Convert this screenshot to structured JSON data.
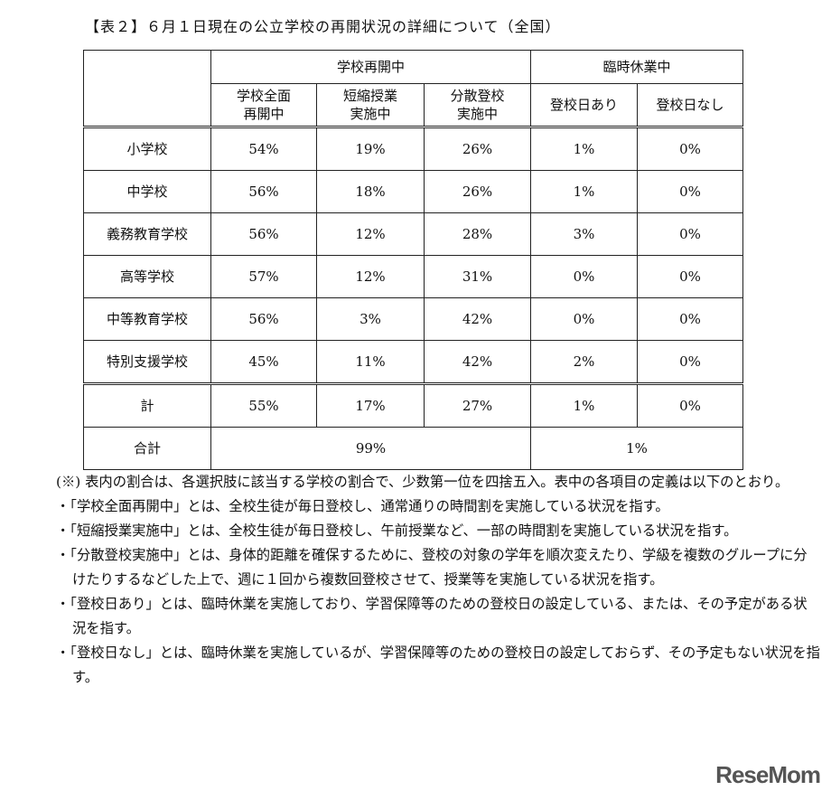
{
  "title": "【表２】６月１日現在の公立学校の再開状況の詳細について（全国）",
  "table": {
    "group_headers": [
      "学校再開中",
      "臨時休業中"
    ],
    "sub_headers": [
      "学校全面\n再開中",
      "短縮授業\n実施中",
      "分散登校\n実施中",
      "登校日あり",
      "登校日なし"
    ],
    "rows": [
      {
        "label": "小学校",
        "values": [
          "54%",
          "19%",
          "26%",
          "1%",
          "0%"
        ]
      },
      {
        "label": "中学校",
        "values": [
          "56%",
          "18%",
          "26%",
          "1%",
          "0%"
        ]
      },
      {
        "label": "義務教育学校",
        "values": [
          "56%",
          "12%",
          "28%",
          "3%",
          "0%"
        ]
      },
      {
        "label": "高等学校",
        "values": [
          "57%",
          "12%",
          "31%",
          "0%",
          "0%"
        ]
      },
      {
        "label": "中等教育学校",
        "values": [
          "56%",
          "3%",
          "42%",
          "0%",
          "0%"
        ]
      },
      {
        "label": "特別支援学校",
        "values": [
          "45%",
          "11%",
          "42%",
          "2%",
          "0%"
        ]
      }
    ],
    "subtotal": {
      "label": "計",
      "values": [
        "55%",
        "17%",
        "27%",
        "1%",
        "0%"
      ]
    },
    "total": {
      "label": "合計",
      "values": [
        "99%",
        "1%"
      ]
    }
  },
  "notes": {
    "main": "(※) 表内の割合は、各選択肢に該当する学校の割合で、少数第一位を四捨五入。表中の各項目の定義は以下のとおり。",
    "items": [
      "・「学校全面再開中」とは、全校生徒が毎日登校し、通常通りの時間割を実施している状況を指す。",
      "・「短縮授業実施中」とは、全校生徒が毎日登校し、午前授業など、一部の時間割を実施している状況を指す。",
      "・「分散登校実施中」とは、身体的距離を確保するために、登校の対象の学年を順次変えたり、学級を複数のグループに分けたりするなどした上で、週に１回から複数回登校させて、授業等を実施している状況を指す。",
      "・「登校日あり」とは、臨時休業を実施しており、学習保障等のための登校日の設定している、または、その予定がある状況を指す。",
      "・「登校日なし」とは、臨時休業を実施しているが、学習保障等のための登校日の設定しておらず、その予定もない状況を指す。"
    ]
  },
  "logo": "ReseMom"
}
